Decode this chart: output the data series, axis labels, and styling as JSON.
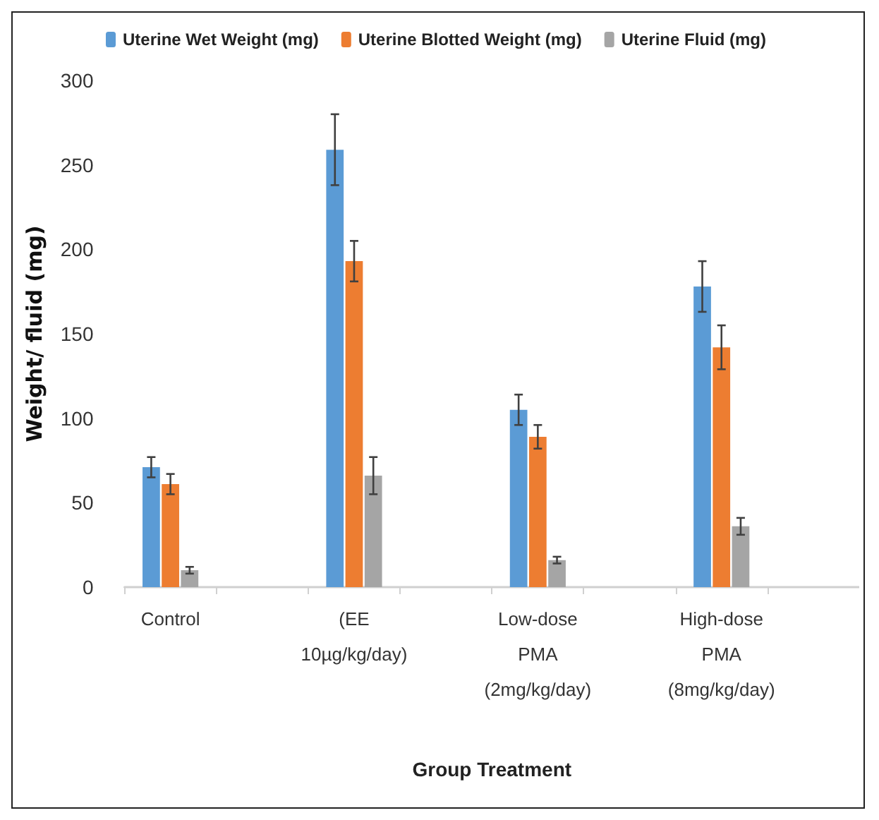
{
  "chart_data": {
    "type": "bar",
    "xlabel": "Group Treatment",
    "ylabel": "Weight/ fluid (mg)",
    "categories": [
      "Control",
      null,
      "(EE\n10µg/kg/day)",
      null,
      "Low-dose\nPMA\n(2mg/kg/day)",
      null,
      "High-dose\nPMA\n(8mg/kg/day)",
      null
    ],
    "series": [
      {
        "name": "Uterine Wet Weight (mg)",
        "color": "#5b9bd5",
        "values": [
          71,
          null,
          259,
          null,
          105,
          null,
          178,
          null
        ],
        "errors": [
          6,
          null,
          21,
          null,
          9,
          null,
          15,
          null
        ]
      },
      {
        "name": "Uterine Blotted Weight (mg)",
        "color": "#ed7d31",
        "values": [
          61,
          null,
          193,
          null,
          89,
          null,
          142,
          null
        ],
        "errors": [
          6,
          null,
          12,
          null,
          7,
          null,
          13,
          null
        ]
      },
      {
        "name": "Uterine Fluid (mg)",
        "color": "#a5a5a5",
        "values": [
          10,
          null,
          66,
          null,
          16,
          null,
          36,
          null
        ],
        "errors": [
          2,
          null,
          11,
          null,
          2,
          null,
          5,
          null
        ]
      }
    ],
    "ylim": [
      0,
      300
    ],
    "yticks": [
      0,
      50,
      100,
      150,
      200,
      250,
      300
    ],
    "grid": false,
    "legend": "top"
  }
}
